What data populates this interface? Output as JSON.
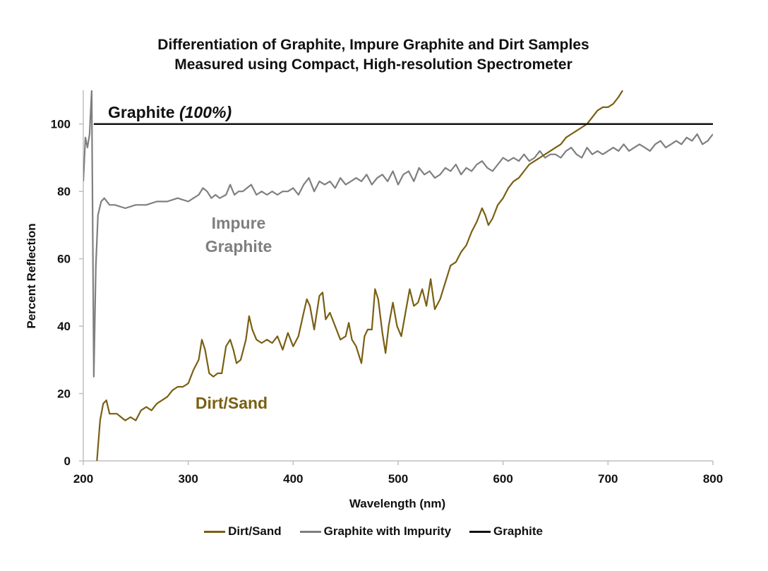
{
  "title_line1": "Differentiation of Graphite, Impure Graphite and Dirt Samples",
  "title_line2": "Measured using Compact, High-resolution Spectrometer",
  "colors": {
    "dirt": "#7a5f12",
    "impure": "#7f7f7f",
    "graphite": "#111111"
  },
  "annotations": {
    "graphite_prefix": "Graphite ",
    "graphite_suffix": "(100%)",
    "impure_line1": "Impure",
    "impure_line2": "Graphite",
    "dirt": "Dirt/Sand"
  },
  "legend": [
    {
      "label": "Dirt/Sand",
      "color": "#7a5f12"
    },
    {
      "label": "Graphite with Impurity",
      "color": "#7f7f7f"
    },
    {
      "label": "Graphite",
      "color": "#111111"
    }
  ],
  "chart_data": {
    "type": "line",
    "xlabel": "Wavelength (nm)",
    "ylabel": "Percent Reflection",
    "xlim": [
      200,
      800
    ],
    "ylim": [
      0,
      110
    ],
    "xticks": [
      200,
      300,
      400,
      500,
      600,
      700,
      800
    ],
    "yticks": [
      0,
      20,
      40,
      60,
      80,
      100
    ],
    "series": [
      {
        "name": "Dirt/Sand",
        "x": [
          213,
          216,
          219,
          222,
          225,
          228,
          232,
          236,
          240,
          245,
          250,
          255,
          260,
          265,
          270,
          275,
          280,
          285,
          290,
          295,
          300,
          305,
          310,
          313,
          316,
          320,
          324,
          328,
          332,
          336,
          340,
          343,
          346,
          350,
          355,
          358,
          361,
          365,
          370,
          375,
          380,
          385,
          390,
          395,
          400,
          405,
          410,
          413,
          416,
          420,
          425,
          428,
          431,
          435,
          440,
          445,
          450,
          453,
          456,
          460,
          465,
          468,
          471,
          475,
          478,
          481,
          485,
          488,
          491,
          495,
          499,
          503,
          507,
          511,
          515,
          519,
          523,
          527,
          531,
          535,
          540,
          545,
          550,
          555,
          560,
          565,
          570,
          575,
          580,
          583,
          586,
          590,
          595,
          600,
          605,
          610,
          615,
          620,
          625,
          630,
          635,
          640,
          645,
          650,
          655,
          660,
          665,
          670,
          675,
          680,
          685,
          690,
          695,
          700,
          705,
          710,
          714
        ],
        "values": [
          0,
          12,
          17,
          18,
          14,
          14,
          14,
          13,
          12,
          13,
          12,
          15,
          16,
          15,
          17,
          18,
          19,
          21,
          22,
          22,
          23,
          27,
          30,
          36,
          33,
          26,
          25,
          26,
          26,
          34,
          36,
          33,
          29,
          30,
          36,
          43,
          39,
          36,
          35,
          36,
          35,
          37,
          33,
          38,
          34,
          37,
          44,
          48,
          46,
          39,
          49,
          50,
          42,
          44,
          40,
          36,
          37,
          41,
          36,
          34,
          29,
          37,
          39,
          39,
          51,
          48,
          38,
          32,
          40,
          47,
          40,
          37,
          44,
          51,
          46,
          47,
          51,
          46,
          54,
          45,
          48,
          53,
          58,
          59,
          62,
          64,
          68,
          71,
          75,
          73,
          70,
          72,
          76,
          78,
          81,
          83,
          84,
          86,
          88,
          89,
          90,
          91,
          92,
          93,
          94,
          96,
          97,
          98,
          99,
          100,
          102,
          104,
          105,
          105,
          106,
          108,
          110
        ]
      },
      {
        "name": "Graphite with Impurity",
        "x": [
          200,
          202,
          204,
          206,
          208,
          210,
          212,
          214,
          217,
          220,
          225,
          230,
          240,
          250,
          260,
          270,
          280,
          290,
          300,
          305,
          310,
          314,
          318,
          322,
          326,
          330,
          336,
          340,
          344,
          348,
          352,
          356,
          360,
          365,
          370,
          375,
          380,
          385,
          390,
          395,
          400,
          405,
          410,
          415,
          420,
          425,
          430,
          435,
          440,
          445,
          450,
          455,
          460,
          465,
          470,
          475,
          480,
          485,
          490,
          495,
          500,
          505,
          510,
          515,
          520,
          525,
          530,
          535,
          540,
          545,
          550,
          555,
          560,
          565,
          570,
          575,
          580,
          585,
          590,
          595,
          600,
          605,
          610,
          615,
          620,
          625,
          630,
          635,
          640,
          645,
          650,
          655,
          660,
          665,
          670,
          675,
          680,
          685,
          690,
          695,
          700,
          705,
          710,
          715,
          720,
          725,
          730,
          735,
          740,
          745,
          750,
          755,
          760,
          765,
          770,
          775,
          780,
          785,
          790,
          795,
          800
        ],
        "values": [
          83,
          96,
          93,
          97,
          110,
          25,
          58,
          73,
          77,
          78,
          76,
          76,
          75,
          76,
          76,
          77,
          77,
          78,
          77,
          78,
          79,
          81,
          80,
          78,
          79,
          78,
          79,
          82,
          79,
          80,
          80,
          81,
          82,
          79,
          80,
          79,
          80,
          79,
          80,
          80,
          81,
          79,
          82,
          84,
          80,
          83,
          82,
          83,
          81,
          84,
          82,
          83,
          84,
          83,
          85,
          82,
          84,
          85,
          83,
          86,
          82,
          85,
          86,
          83,
          87,
          85,
          86,
          84,
          85,
          87,
          86,
          88,
          85,
          87,
          86,
          88,
          89,
          87,
          86,
          88,
          90,
          89,
          90,
          89,
          91,
          89,
          90,
          92,
          90,
          91,
          91,
          90,
          92,
          93,
          91,
          90,
          93,
          91,
          92,
          91,
          92,
          93,
          92,
          94,
          92,
          93,
          94,
          93,
          92,
          94,
          95,
          93,
          94,
          95,
          94,
          96,
          95,
          97,
          94,
          95,
          97
        ]
      },
      {
        "name": "Graphite",
        "x": [
          210,
          800
        ],
        "values": [
          100,
          100
        ]
      }
    ]
  }
}
